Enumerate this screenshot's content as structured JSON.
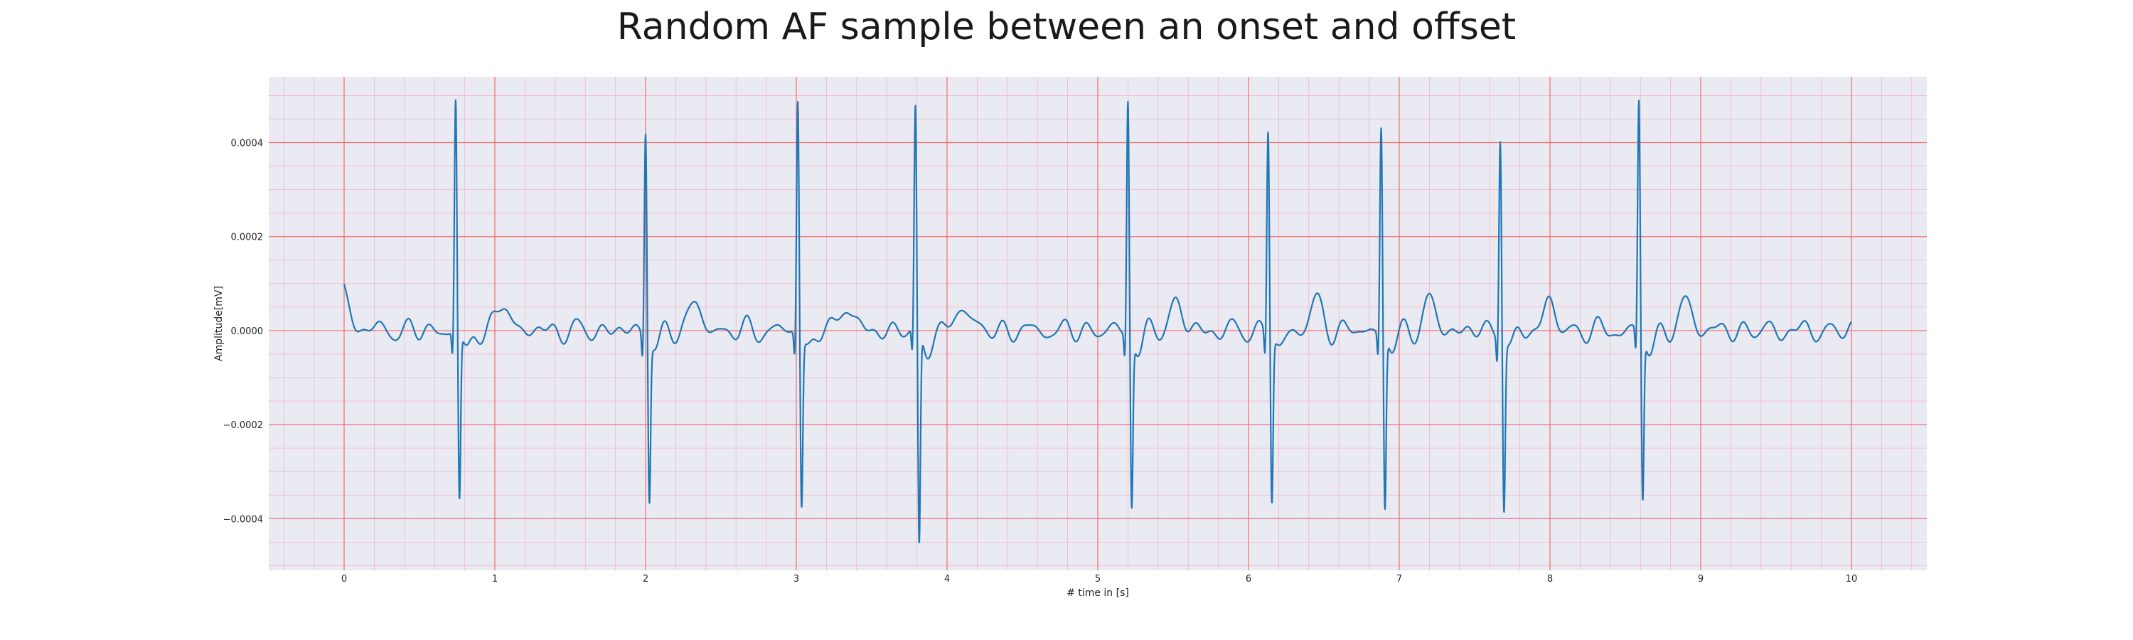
{
  "chart_data": {
    "type": "line",
    "title": "Random AF sample between an onset and offset",
    "xlabel": "# time in [s]",
    "ylabel": "Amplitude[mV]",
    "xlim": [
      -0.5,
      10.5
    ],
    "ylim": [
      -0.00051,
      0.00054
    ],
    "x_ticks": [
      0,
      1,
      2,
      3,
      4,
      5,
      6,
      7,
      8,
      9,
      10
    ],
    "x_tick_labels": [
      "0",
      "1",
      "2",
      "3",
      "4",
      "5",
      "6",
      "7",
      "8",
      "9",
      "10"
    ],
    "y_ticks": [
      -0.0004,
      -0.0002,
      0.0,
      0.0002,
      0.0004
    ],
    "y_tick_labels": [
      "−0.0004",
      "−0.0002",
      "0.0000",
      "0.0002",
      "0.0004"
    ],
    "grid": true,
    "minor_grid": true,
    "legend": "none",
    "series": [
      {
        "color": "#1f77b4",
        "r_peaks_s": [
          0.74,
          2.0,
          3.01,
          3.79,
          5.2,
          6.13,
          6.88,
          7.67,
          8.59
        ],
        "r_peak_max_mV": [
          0.00049,
          0.00044,
          0.0005,
          0.00047,
          0.0005,
          0.00044,
          0.00044,
          0.00043,
          0.00049
        ],
        "s_trough_min_mV": [
          -0.00036,
          -0.00034,
          -0.00036,
          -0.00046,
          -0.00036,
          -0.00035,
          -0.00037,
          -0.00036,
          -0.00035
        ],
        "start_value_mV": 8e-05,
        "baseline_fibrillation_amplitude_mV": 3e-05,
        "x_range_s": [
          0,
          10
        ]
      }
    ]
  },
  "colors": {
    "plot_background": "#eaeaf2",
    "major_grid": "#f26d6d",
    "minor_grid": "#f5b5c8",
    "line": "#1f77b4"
  }
}
